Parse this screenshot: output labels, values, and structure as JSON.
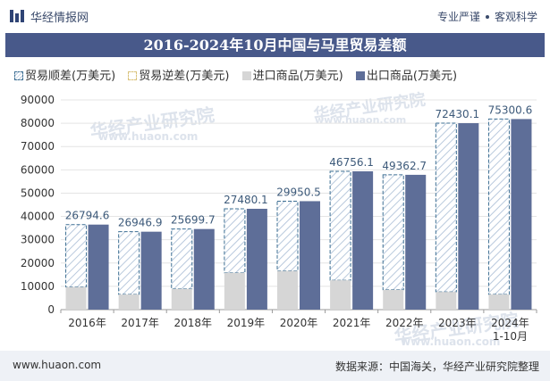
{
  "header": {
    "site_name": "华经情报网",
    "tagline_left": "专业严谨",
    "tagline_right": "客观科学"
  },
  "watermark": {
    "cn": "华经产业研究院",
    "url": "www.huaon.com"
  },
  "footer": {
    "url": "www.huaon.com",
    "source": "数据来源：中国海关，华经产业研究院整理"
  },
  "colors": {
    "title_bg": "#48598a",
    "export": "#5e6e98",
    "import": "#d6d6d6",
    "surplus_line": "#3d6f93",
    "deficit_line": "#d9c27a"
  },
  "chart_data": {
    "type": "bar",
    "title": "2016-2024年10月中国与马里贸易差额",
    "categories": [
      "2016年",
      "2017年",
      "2018年",
      "2019年",
      "2020年",
      "2021年",
      "2022年",
      "2023年",
      "2024年\n1-10月"
    ],
    "ylim": [
      0,
      90000
    ],
    "yticks": [
      0,
      10000,
      20000,
      30000,
      40000,
      50000,
      60000,
      70000,
      80000,
      90000
    ],
    "series": [
      {
        "name": "贸易顺差(万美元)",
        "values": [
          26794.6,
          26946.9,
          25699.7,
          27480.1,
          29950.5,
          46756.1,
          49362.7,
          72430.1,
          75300.6
        ]
      },
      {
        "name": "贸易逆差(万美元)",
        "values": [
          0,
          0,
          0,
          0,
          0,
          0,
          0,
          0,
          0
        ]
      },
      {
        "name": "进口商品(万美元)",
        "values": [
          9700,
          6500,
          8900,
          15800,
          16600,
          12600,
          8500,
          7600,
          6500
        ]
      },
      {
        "name": "出口商品(万美元)",
        "values": [
          36494.6,
          33446.9,
          34599.7,
          43280.1,
          46550.5,
          59356.1,
          57862.7,
          80030.1,
          81800.6
        ]
      }
    ]
  }
}
